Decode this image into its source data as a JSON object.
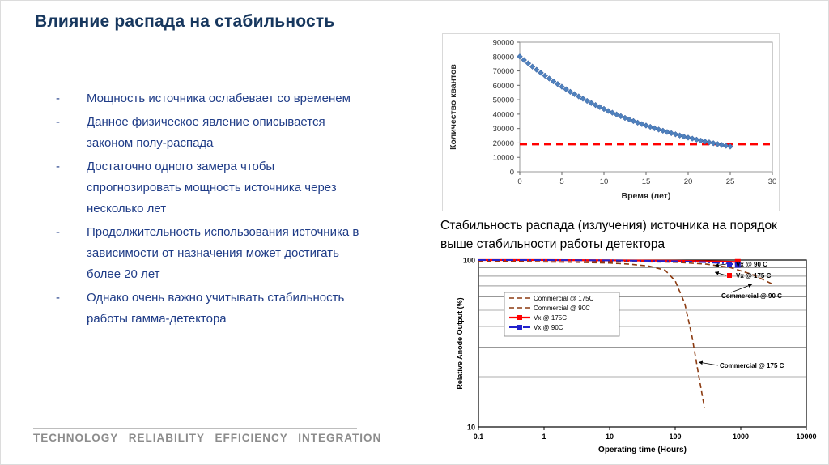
{
  "colors": {
    "title_text": "#17375E",
    "bullet_text": "#1F3C87",
    "caption_text": "#000000",
    "footer_text": "#8C8C8C"
  },
  "slide": {
    "title": "Влияние распада на стабильность",
    "bullet_marker": "-",
    "bullets": [
      "Мощность источника ослабевает со временем",
      "Данное физическое явление описывается\nзаконом полу-распада",
      "Достаточно одного замера чтобы\nспрогнозировать мощность источника через\nнесколько лет",
      "Продолжительность использования источника в\nзависимости от назначения может достигать\nболее 20 лет",
      "Однако очень важно учитывать стабильность\nработы гамма-детектора"
    ],
    "caption": "Стабильность распада (излучения) источника на порядок\nвыше стабильности работы детектора",
    "footer": "TECHNOLOGY RELIABILITY EFFICIENCY INTEGRATION"
  },
  "chart_data": [
    {
      "type": "scatter",
      "title": "",
      "xlabel": "Время (лет)",
      "ylabel": "Количество квантов",
      "xlim": [
        0,
        30
      ],
      "ylim": [
        0,
        90000
      ],
      "xticks": [
        0,
        5,
        10,
        15,
        20,
        25,
        30
      ],
      "yticks": [
        0,
        10000,
        20000,
        30000,
        40000,
        50000,
        60000,
        70000,
        80000,
        90000
      ],
      "grid": false,
      "threshold": {
        "value": 19000,
        "color": "#FF0000",
        "style": "dashed"
      },
      "series": [
        {
          "name": "Количество квантов",
          "marker": "diamond",
          "color": "#4F81BD",
          "x": [
            0,
            0.5,
            1,
            1.5,
            2,
            2.5,
            3,
            3.5,
            4,
            4.5,
            5,
            5.5,
            6,
            6.5,
            7,
            7.5,
            8,
            8.5,
            9,
            9.5,
            10,
            10.5,
            11,
            11.5,
            12,
            12.5,
            13,
            13.5,
            14,
            14.5,
            15,
            15.5,
            16,
            16.5,
            17,
            17.5,
            18,
            18.5,
            19,
            19.5,
            20,
            20.5,
            21,
            21.5,
            22,
            22.5,
            23,
            23.5,
            24,
            24.5,
            25
          ],
          "y": [
            80000,
            77600,
            75300,
            73000,
            70800,
            68700,
            66700,
            64700,
            62700,
            60900,
            59000,
            57300,
            55500,
            53900,
            52300,
            50700,
            49200,
            47700,
            46300,
            44900,
            43600,
            42200,
            41000,
            39800,
            38600,
            37400,
            36300,
            35200,
            34100,
            33100,
            32100,
            31200,
            30200,
            29300,
            28500,
            27600,
            26800,
            26000,
            25200,
            24400,
            23700,
            23000,
            22300,
            21600,
            21000,
            20400,
            19800,
            19200,
            18600,
            18000,
            17500
          ]
        }
      ]
    },
    {
      "type": "line",
      "xscale": "log",
      "yscale": "log",
      "xlabel": "Operating time (Hours)",
      "ylabel": "Relative Anode Output (%)",
      "xlim": [
        0.1,
        10000
      ],
      "ylim": [
        10,
        100
      ],
      "xticks": [
        0.1,
        1,
        10,
        100,
        1000,
        10000
      ],
      "yticks": [
        10,
        100
      ],
      "gridlines_y": [
        20,
        30,
        40,
        50,
        60,
        70,
        80,
        90
      ],
      "legend_position": "upper-left-inside",
      "series": [
        {
          "name": "Commercial @ 175C",
          "color": "#8B3A10",
          "dash": "6 4",
          "width": 1.6,
          "marker": "none",
          "x": [
            0.1,
            0.5,
            1,
            3,
            10,
            20,
            40,
            70,
            100,
            140,
            180,
            230,
            280
          ],
          "y": [
            98,
            98,
            97.5,
            97,
            96,
            94.5,
            92,
            87,
            75,
            55,
            35,
            20,
            13
          ]
        },
        {
          "name": "Commercial @ 90C",
          "color": "#8B3A10",
          "dash": "6 4",
          "width": 1.6,
          "marker": "none",
          "x": [
            0.1,
            1,
            10,
            100,
            300,
            700,
            1500,
            3000
          ],
          "y": [
            100,
            99.5,
            98.5,
            97,
            94.5,
            90,
            82,
            72
          ]
        },
        {
          "name": "Vx @ 175C",
          "color": "#FF0000",
          "dash": "",
          "width": 2.2,
          "marker": "square",
          "x": [
            0.1,
            1,
            10,
            100,
            500,
            900
          ],
          "y": [
            100,
            100,
            99.5,
            99,
            98,
            97.5
          ]
        },
        {
          "name": "Vx @ 90C",
          "color": "#2222CC",
          "dash": "9 3 2 3",
          "width": 2,
          "marker": "square",
          "x": [
            0.1,
            1,
            10,
            100,
            300,
            600,
            900
          ],
          "y": [
            100,
            100,
            99.5,
            98.5,
            97,
            95.5,
            93.5
          ]
        }
      ],
      "annotations": [
        {
          "label": "Vx @ 90 C",
          "square": "#2222CC"
        },
        {
          "label": "Vx @ 175 C",
          "square": "#FF0000"
        },
        {
          "label": "Commercial @ 90 C"
        },
        {
          "label": "Commercial @ 175 C"
        }
      ]
    }
  ]
}
